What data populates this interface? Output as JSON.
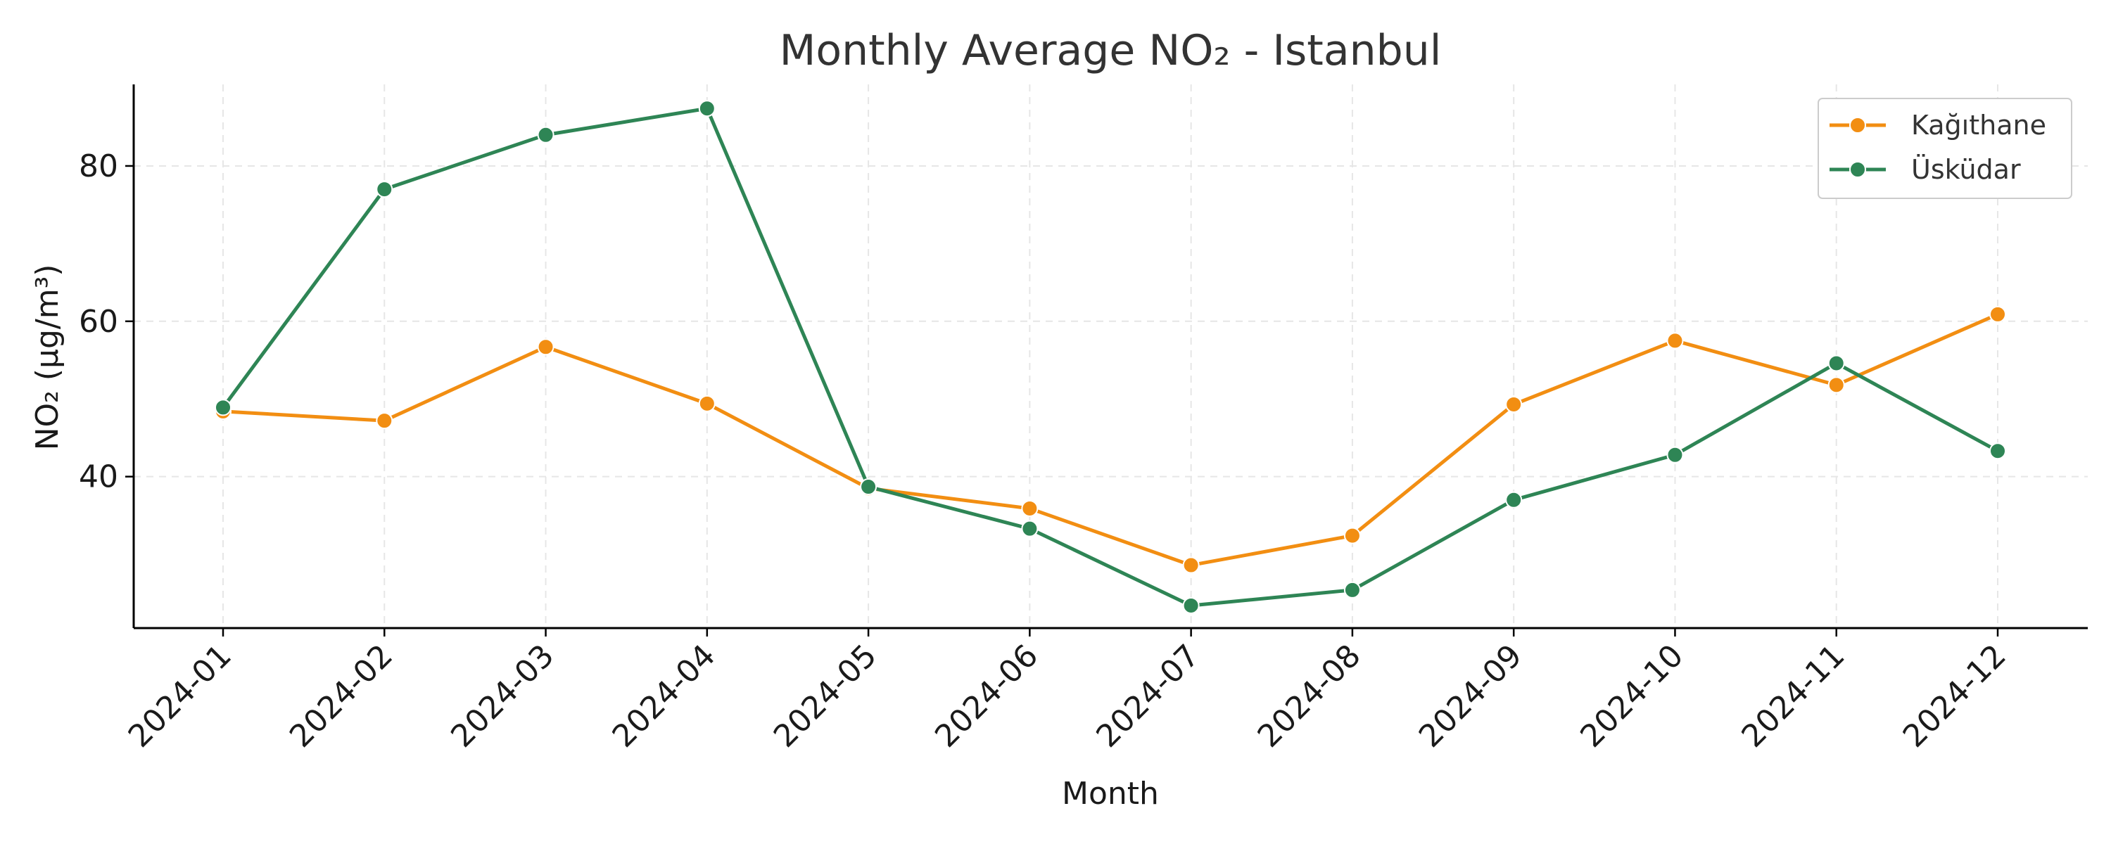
{
  "chart_data": {
    "type": "line",
    "title": "Monthly Average NO₂ - Istanbul",
    "xlabel": "Month",
    "ylabel": "NO₂ (µg/m³)",
    "categories": [
      "2024-01",
      "2024-02",
      "2024-03",
      "2024-04",
      "2024-05",
      "2024-06",
      "2024-07",
      "2024-08",
      "2024-09",
      "2024-10",
      "2024-11",
      "2024-12"
    ],
    "yticks": [
      40,
      60,
      80
    ],
    "ylim": [
      20.5,
      90.5
    ],
    "grid": true,
    "legend_position": "top-right",
    "series": [
      {
        "name": "Kağıthane",
        "color": "#f28e12",
        "values": [
          48.4,
          47.2,
          56.7,
          49.4,
          38.5,
          35.9,
          28.6,
          32.4,
          49.3,
          57.5,
          51.8,
          60.9
        ]
      },
      {
        "name": "Üsküdar",
        "color": "#2e8555",
        "values": [
          48.9,
          77.0,
          84.0,
          87.4,
          38.7,
          33.3,
          23.4,
          25.4,
          37.0,
          42.8,
          54.6,
          43.3
        ]
      }
    ]
  }
}
